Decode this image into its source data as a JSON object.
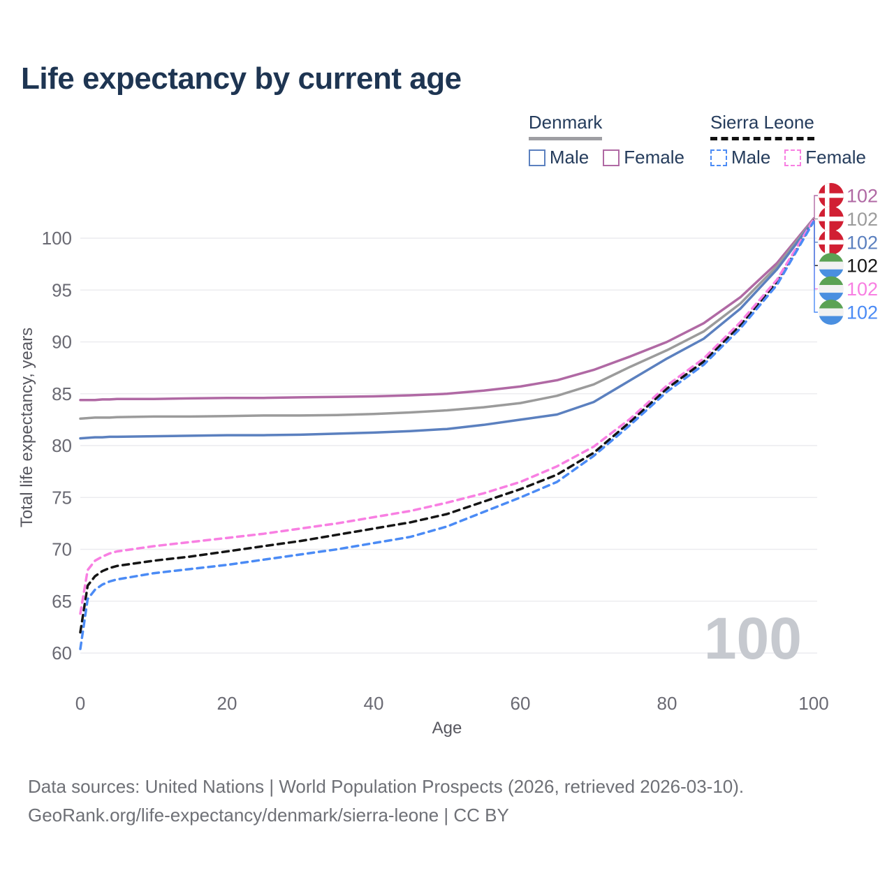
{
  "page": {
    "title": "Life expectancy by current age"
  },
  "legend": {
    "groups": [
      {
        "name": "Denmark",
        "line_style": "solid",
        "underline_color": "#9e9ea3",
        "items": [
          {
            "label": "Male",
            "color": "#5b80bf"
          },
          {
            "label": "Female",
            "color": "#b069a4"
          }
        ]
      },
      {
        "name": "Sierra Leone",
        "line_style": "dashed",
        "underline_color": "#111111",
        "items": [
          {
            "label": "Male",
            "color": "#4b8bf5"
          },
          {
            "label": "Female",
            "color": "#f87fe2"
          }
        ]
      }
    ]
  },
  "watermark": "100",
  "footer": {
    "line1": "Data sources: United Nations | World Population Prospects (2026, retrieved 2026-03-10).",
    "line2": "GeoRank.org/life-expectancy/denmark/sierra-leone | CC BY"
  },
  "chart_data": {
    "type": "line",
    "title": "Life expectancy by current age",
    "xlabel": "Age",
    "ylabel": "Total life expectancy, years",
    "xlim": [
      0,
      100
    ],
    "ylim": [
      60,
      102
    ],
    "xticks": [
      0,
      20,
      40,
      60,
      80,
      100
    ],
    "yticks": [
      60,
      65,
      70,
      75,
      80,
      85,
      90,
      95,
      100
    ],
    "grid": "horizontal",
    "legend_position": "top-right",
    "x": [
      0,
      1,
      2,
      3,
      4,
      5,
      10,
      15,
      20,
      25,
      30,
      35,
      40,
      45,
      50,
      55,
      60,
      65,
      70,
      75,
      80,
      85,
      90,
      95,
      100
    ],
    "series": [
      {
        "name": "Denmark Female",
        "country": "denmark",
        "sex": "female",
        "color": "#b069a4",
        "dash": false,
        "end_label": "102",
        "values": [
          84.4,
          84.4,
          84.4,
          84.45,
          84.45,
          84.5,
          84.5,
          84.55,
          84.6,
          84.6,
          84.65,
          84.7,
          84.75,
          84.85,
          85.0,
          85.3,
          85.7,
          86.3,
          87.3,
          88.6,
          90.0,
          91.8,
          94.3,
          97.6,
          101.9
        ]
      },
      {
        "name": "Denmark Both sexes",
        "country": "denmark",
        "sex": "all",
        "color": "#9b9b9b",
        "dash": false,
        "end_label": "102",
        "values": [
          82.6,
          82.65,
          82.7,
          82.7,
          82.7,
          82.75,
          82.8,
          82.8,
          82.85,
          82.9,
          82.9,
          82.95,
          83.05,
          83.2,
          83.4,
          83.7,
          84.1,
          84.8,
          85.9,
          87.6,
          89.2,
          91.0,
          93.7,
          97.3,
          101.8
        ]
      },
      {
        "name": "Denmark Male",
        "country": "denmark",
        "sex": "male",
        "color": "#5b80bf",
        "dash": false,
        "end_label": "102",
        "values": [
          80.7,
          80.75,
          80.8,
          80.8,
          80.85,
          80.85,
          80.9,
          80.95,
          81.0,
          81.0,
          81.05,
          81.15,
          81.25,
          81.4,
          81.6,
          82.0,
          82.5,
          83.0,
          84.2,
          86.3,
          88.4,
          90.3,
          93.2,
          97.0,
          101.7
        ]
      },
      {
        "name": "Sierra Leone Both sexes",
        "country": "sierra-leone",
        "sex": "all",
        "color": "#151515",
        "dash": true,
        "end_label": "102",
        "values": [
          62.0,
          66.5,
          67.4,
          67.9,
          68.2,
          68.4,
          68.9,
          69.3,
          69.8,
          70.3,
          70.8,
          71.4,
          72.0,
          72.6,
          73.4,
          74.6,
          75.8,
          77.2,
          79.3,
          82.3,
          85.5,
          88.1,
          91.6,
          95.8,
          101.7
        ]
      },
      {
        "name": "Sierra Leone Female",
        "country": "sierra-leone",
        "sex": "female",
        "color": "#f87fe2",
        "dash": true,
        "end_label": "102",
        "values": [
          63.8,
          68.0,
          68.9,
          69.3,
          69.6,
          69.8,
          70.3,
          70.7,
          71.1,
          71.5,
          72.0,
          72.5,
          73.1,
          73.7,
          74.5,
          75.4,
          76.5,
          78.0,
          79.9,
          82.6,
          85.8,
          88.4,
          91.9,
          96.0,
          101.8
        ]
      },
      {
        "name": "Sierra Leone Male",
        "country": "sierra-leone",
        "sex": "male",
        "color": "#4b8bf5",
        "dash": true,
        "end_label": "102",
        "values": [
          60.4,
          65.2,
          66.1,
          66.6,
          66.9,
          67.1,
          67.7,
          68.1,
          68.5,
          69.0,
          69.5,
          70.0,
          70.6,
          71.2,
          72.2,
          73.6,
          75.0,
          76.5,
          79.0,
          82.0,
          85.2,
          87.8,
          91.3,
          95.5,
          101.6
        ]
      }
    ],
    "flag_colors": {
      "denmark": {
        "field": "#d11f33",
        "cross": "#ffffff"
      },
      "sierra_leone": {
        "green": "#5ba254",
        "white": "#f2f2f2",
        "blue": "#4a8fe0"
      }
    }
  }
}
